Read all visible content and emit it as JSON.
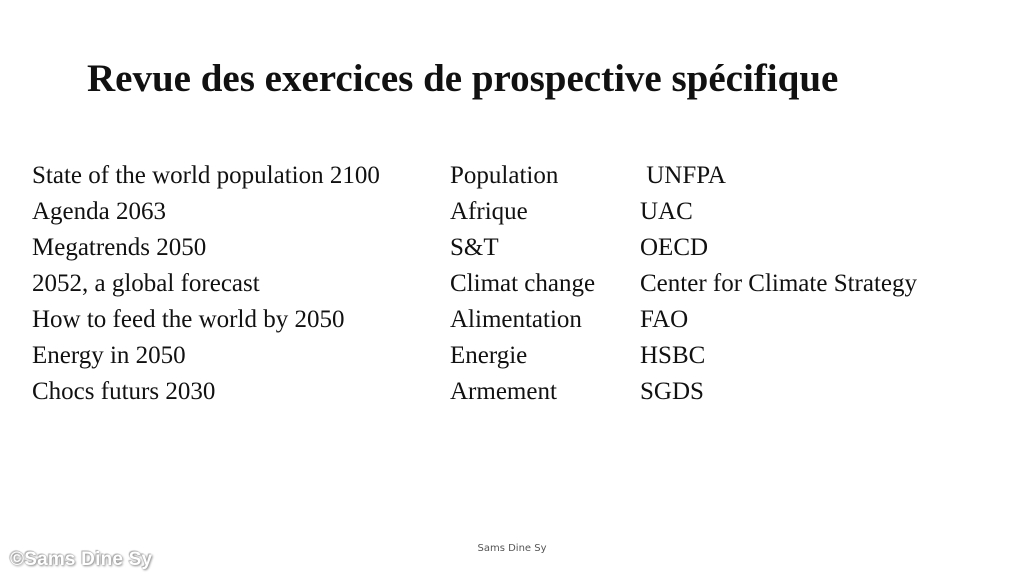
{
  "slide": {
    "title": "Revue des exercices de prospective spécifique",
    "rows": [
      {
        "study": "State of  the world population 2100",
        "theme": "Population",
        "source": " UNFPA"
      },
      {
        "study": "Agenda 2063",
        "theme": "Afrique",
        "source": "UAC"
      },
      {
        "study": "Megatrends 2050",
        "theme": "S&T",
        "source": "OECD"
      },
      {
        "study": "2052, a global forecast",
        "theme": "Climat change",
        "source": "Center for Climate Strategy"
      },
      {
        "study": "How to feed the world by 2050",
        "theme": "Alimentation",
        "source": "FAO"
      },
      {
        "study": "Energy in 2050",
        "theme": "Energie",
        "source": "HSBC"
      },
      {
        "study": "Chocs futurs 2030",
        "theme": "Armement",
        "source": "SGDS"
      }
    ],
    "footer": "Sams Dine Sy",
    "watermark": "©Sams Dine Sy"
  }
}
